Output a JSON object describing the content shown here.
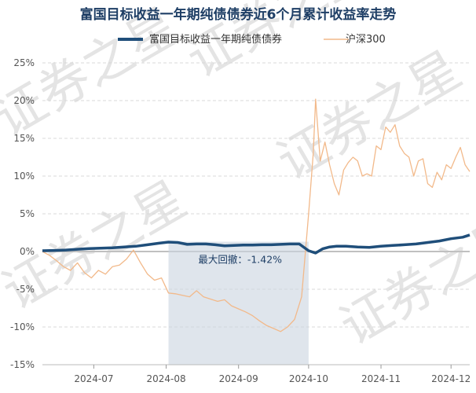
{
  "chart_data": {
    "type": "line",
    "title": "富国目标收益一年期纯债债券近6个月累计收益率走势",
    "legend_position": "top",
    "grid": true,
    "ylim": [
      -15,
      25
    ],
    "y_ticks": [
      25,
      20,
      15,
      10,
      5,
      0,
      -5,
      -10,
      -15
    ],
    "y_tick_labels": [
      "25%",
      "20%",
      "15%",
      "10%",
      "5%",
      "0%",
      "-5%",
      "-10%",
      "-15%"
    ],
    "x_range": [
      0,
      183
    ],
    "x_ticks": [
      {
        "x": 22,
        "label": "2024-07"
      },
      {
        "x": 53,
        "label": "2024-08"
      },
      {
        "x": 84,
        "label": "2024-09"
      },
      {
        "x": 114,
        "label": "2024-10"
      },
      {
        "x": 145,
        "label": "2024-11"
      },
      {
        "x": 175,
        "label": "2024-12"
      }
    ],
    "drawdown": {
      "x_start": 54,
      "x_end": 114,
      "label": "最大回撤：-1.42%"
    },
    "watermark_text": "证券之星",
    "series": [
      {
        "name": "富国目标收益一年期纯债债券",
        "color": "#1f4e7a",
        "x": [
          0,
          5,
          10,
          15,
          20,
          25,
          30,
          35,
          40,
          45,
          50,
          54,
          58,
          62,
          66,
          70,
          74,
          78,
          82,
          86,
          90,
          94,
          98,
          102,
          106,
          110,
          114,
          117,
          120,
          123,
          126,
          130,
          135,
          140,
          145,
          150,
          155,
          160,
          165,
          170,
          175,
          180,
          183
        ],
        "y": [
          0.1,
          0.15,
          0.2,
          0.3,
          0.4,
          0.45,
          0.5,
          0.6,
          0.7,
          0.9,
          1.1,
          1.25,
          1.2,
          0.95,
          1.0,
          1.0,
          0.9,
          0.75,
          0.8,
          0.85,
          0.85,
          0.9,
          0.9,
          0.95,
          1.0,
          1.0,
          0.1,
          -0.2,
          0.35,
          0.6,
          0.7,
          0.7,
          0.6,
          0.55,
          0.7,
          0.8,
          0.9,
          1.0,
          1.2,
          1.4,
          1.7,
          1.9,
          2.2
        ]
      },
      {
        "name": "沪深300",
        "color": "#f2b98a",
        "x": [
          0,
          3,
          6,
          9,
          12,
          15,
          18,
          21,
          24,
          27,
          30,
          33,
          36,
          39,
          42,
          45,
          48,
          51,
          54,
          57,
          60,
          63,
          66,
          69,
          72,
          75,
          78,
          81,
          84,
          87,
          90,
          93,
          96,
          99,
          102,
          105,
          108,
          111,
          114,
          116,
          117,
          119,
          121,
          123,
          125,
          127,
          129,
          131,
          133,
          135,
          137,
          139,
          141,
          143,
          145,
          147,
          149,
          151,
          153,
          155,
          157,
          159,
          161,
          163,
          165,
          167,
          169,
          171,
          173,
          175,
          177,
          179,
          181,
          183
        ],
        "y": [
          0,
          -0.5,
          -1.2,
          -2.0,
          -2.5,
          -1.5,
          -2.8,
          -3.5,
          -2.5,
          -3.0,
          -2.0,
          -1.8,
          -1.0,
          0.2,
          -1.5,
          -3.0,
          -3.8,
          -3.5,
          -5.5,
          -5.6,
          -5.8,
          -6.0,
          -5.2,
          -6.0,
          -6.3,
          -6.6,
          -6.4,
          -7.2,
          -7.6,
          -8.0,
          -8.5,
          -9.2,
          -9.8,
          -10.2,
          -10.6,
          -10.0,
          -9.0,
          -6.0,
          5.0,
          13.0,
          20.2,
          12.0,
          14.5,
          11.5,
          9.0,
          7.5,
          10.8,
          11.8,
          12.5,
          12.0,
          10.0,
          10.3,
          10.0,
          14.0,
          13.5,
          16.5,
          15.8,
          16.8,
          14.0,
          13.0,
          12.5,
          10.0,
          12.0,
          12.3,
          9.0,
          8.5,
          10.5,
          9.5,
          11.5,
          11.0,
          12.5,
          13.8,
          11.5,
          10.6
        ]
      }
    ]
  }
}
